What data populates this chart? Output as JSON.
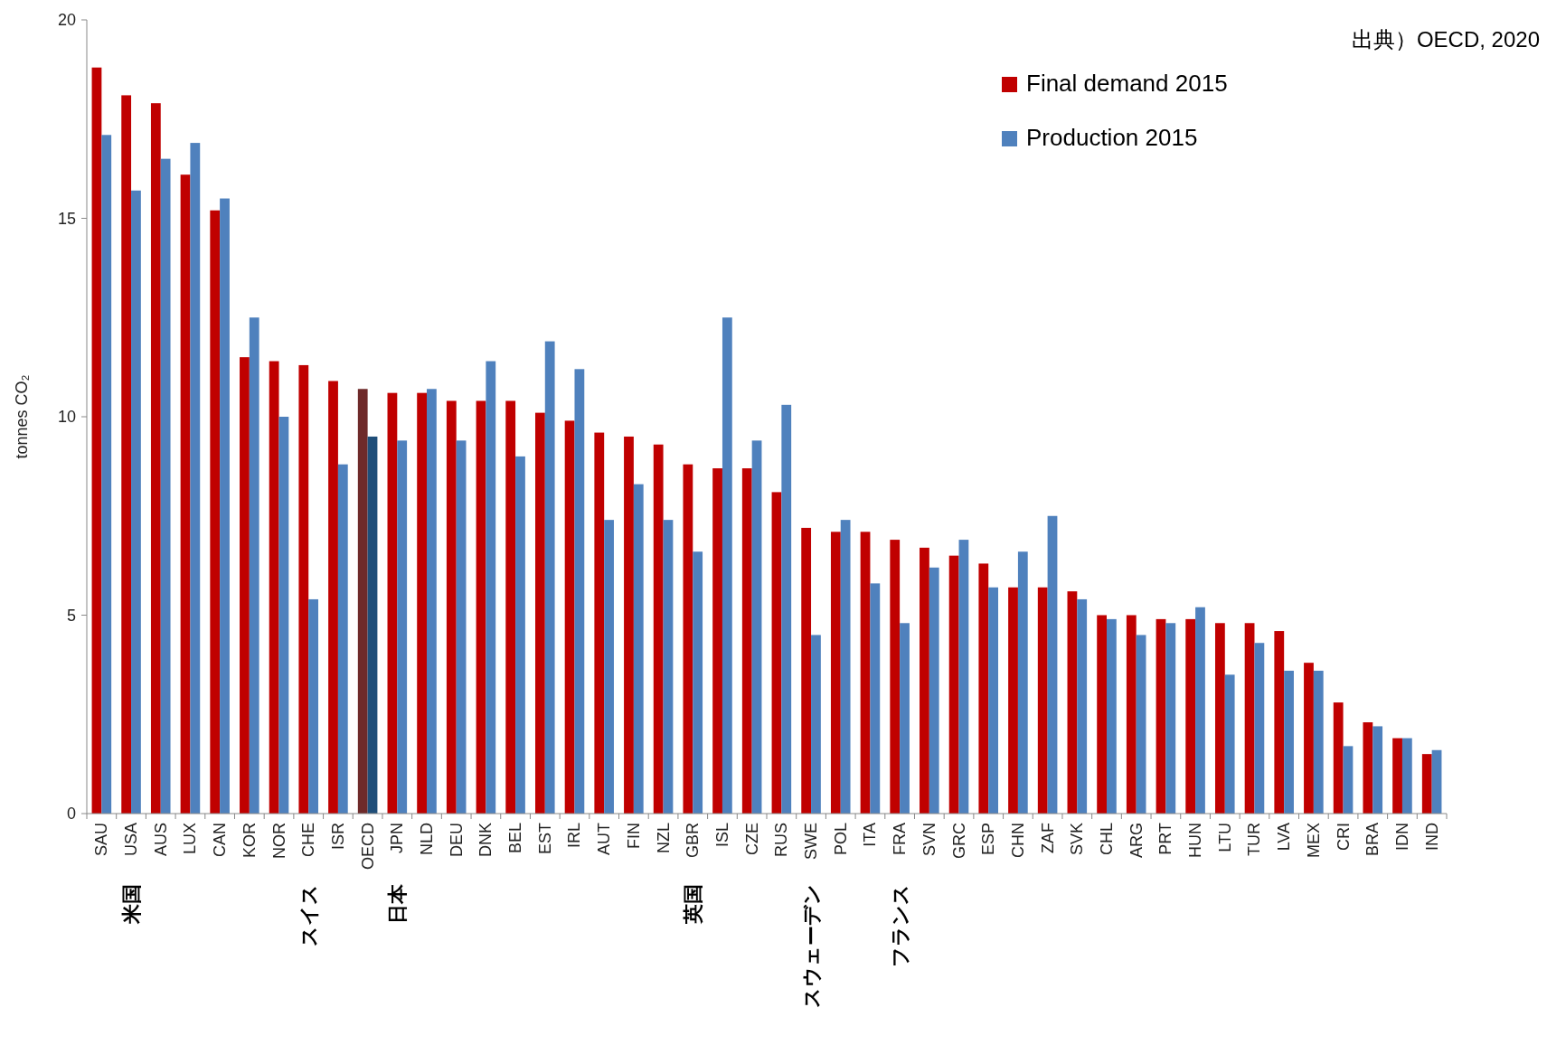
{
  "chart_data": {
    "type": "bar",
    "ylabel": "tonnes CO₂",
    "ylim": [
      0,
      20
    ],
    "yticks": [
      0,
      5,
      10,
      15,
      20
    ],
    "legend": "top right",
    "categories": [
      "SAU",
      "USA",
      "AUS",
      "LUX",
      "CAN",
      "KOR",
      "NOR",
      "CHE",
      "ISR",
      "OECD",
      "JPN",
      "NLD",
      "DEU",
      "DNK",
      "BEL",
      "EST",
      "IRL",
      "AUT",
      "FIN",
      "NZL",
      "GBR",
      "ISL",
      "CZE",
      "RUS",
      "SWE",
      "POL",
      "ITA",
      "FRA",
      "SVN",
      "GRC",
      "ESP",
      "CHN",
      "ZAF",
      "SVK",
      "CHL",
      "ARG",
      "PRT",
      "HUN",
      "LTU",
      "TUR",
      "LVA",
      "MEX",
      "CRI",
      "BRA",
      "IDN",
      "IND"
    ],
    "series": [
      {
        "name": "Final demand 2015",
        "color": "#c00000",
        "colors": [
          "#c00000",
          "#c00000",
          "#c00000",
          "#c00000",
          "#c00000",
          "#c00000",
          "#c00000",
          "#c00000",
          "#c00000",
          "#6e2a2a",
          "#c00000",
          "#c00000",
          "#c00000",
          "#c00000",
          "#c00000",
          "#c00000",
          "#c00000",
          "#c00000",
          "#c00000",
          "#c00000",
          "#c00000",
          "#c00000",
          "#c00000",
          "#c00000",
          "#c00000",
          "#c00000",
          "#c00000",
          "#c00000",
          "#c00000",
          "#c00000",
          "#c00000",
          "#c00000",
          "#c00000",
          "#c00000",
          "#c00000",
          "#c00000",
          "#c00000",
          "#c00000",
          "#c00000",
          "#c00000",
          "#c00000",
          "#c00000",
          "#c00000",
          "#c00000",
          "#c00000",
          "#c00000"
        ],
        "values": [
          18.8,
          18.1,
          17.9,
          16.1,
          15.2,
          11.5,
          11.4,
          11.3,
          10.9,
          10.7,
          10.6,
          10.6,
          10.4,
          10.4,
          10.4,
          10.1,
          9.9,
          9.6,
          9.5,
          9.3,
          8.8,
          8.7,
          8.7,
          8.1,
          7.2,
          7.1,
          7.1,
          6.9,
          6.7,
          6.5,
          6.3,
          5.7,
          5.7,
          5.6,
          5.0,
          5.0,
          4.9,
          4.9,
          4.8,
          4.8,
          4.6,
          3.8,
          2.8,
          2.3,
          1.9,
          1.5
        ]
      },
      {
        "name": "Production 2015",
        "color": "#4f81bd",
        "colors": [
          "#4f81bd",
          "#4f81bd",
          "#4f81bd",
          "#4f81bd",
          "#4f81bd",
          "#4f81bd",
          "#4f81bd",
          "#4f81bd",
          "#4f81bd",
          "#1f4e79",
          "#4f81bd",
          "#4f81bd",
          "#4f81bd",
          "#4f81bd",
          "#4f81bd",
          "#4f81bd",
          "#4f81bd",
          "#4f81bd",
          "#4f81bd",
          "#4f81bd",
          "#4f81bd",
          "#4f81bd",
          "#4f81bd",
          "#4f81bd",
          "#4f81bd",
          "#4f81bd",
          "#4f81bd",
          "#4f81bd",
          "#4f81bd",
          "#4f81bd",
          "#4f81bd",
          "#4f81bd",
          "#4f81bd",
          "#4f81bd",
          "#4f81bd",
          "#4f81bd",
          "#4f81bd",
          "#4f81bd",
          "#4f81bd",
          "#4f81bd",
          "#4f81bd",
          "#4f81bd",
          "#4f81bd",
          "#4f81bd",
          "#4f81bd",
          "#4f81bd"
        ],
        "values": [
          17.1,
          15.7,
          16.5,
          16.9,
          15.5,
          12.5,
          10.0,
          5.4,
          8.8,
          9.5,
          9.4,
          10.7,
          9.4,
          11.4,
          9.0,
          11.9,
          11.2,
          7.4,
          8.3,
          7.4,
          6.6,
          12.5,
          9.4,
          10.3,
          4.5,
          7.4,
          5.8,
          4.8,
          6.2,
          6.9,
          5.7,
          6.6,
          7.5,
          5.4,
          4.9,
          4.5,
          4.8,
          5.2,
          3.5,
          4.3,
          3.6,
          3.6,
          1.7,
          2.2,
          1.9,
          1.6
        ]
      }
    ],
    "annotations": [
      "出典）OECD, 2020",
      "米国",
      "スイス",
      "日本",
      "英国",
      "スウェーデン",
      "フランス"
    ]
  }
}
